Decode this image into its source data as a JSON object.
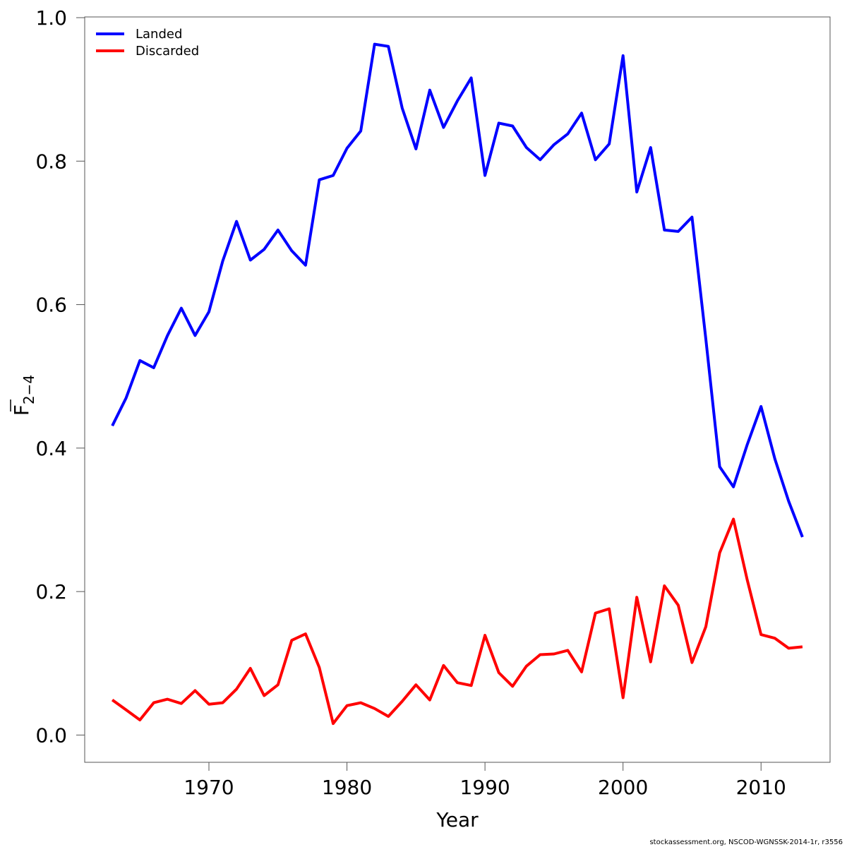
{
  "chart_data": {
    "type": "line",
    "title": "",
    "xlabel": "Year",
    "ylabel": "F",
    "ylabel_subscript": "2−4",
    "xlim": [
      1961,
      2015
    ],
    "ylim": [
      -0.038,
      1.001
    ],
    "xticks": [
      1970,
      1980,
      1990,
      2000,
      2010
    ],
    "xtick_labels": [
      "1970",
      "1980",
      "1990",
      "2000",
      "2010"
    ],
    "yticks": [
      0.0,
      0.2,
      0.4,
      0.6,
      0.8,
      1.0
    ],
    "ytick_labels": [
      "0.0",
      "0.2",
      "0.4",
      "0.6",
      "0.8",
      "1.0"
    ],
    "grid": false,
    "legend_position": "top-left",
    "x": [
      1963,
      1964,
      1965,
      1966,
      1967,
      1968,
      1969,
      1970,
      1971,
      1972,
      1973,
      1974,
      1975,
      1976,
      1977,
      1978,
      1979,
      1980,
      1981,
      1982,
      1983,
      1984,
      1985,
      1986,
      1987,
      1988,
      1989,
      1990,
      1991,
      1992,
      1993,
      1994,
      1995,
      1996,
      1997,
      1998,
      1999,
      2000,
      2001,
      2002,
      2003,
      2004,
      2005,
      2006,
      2007,
      2008,
      2009,
      2010,
      2011,
      2012,
      2013
    ],
    "series": [
      {
        "name": "Landed",
        "color": "#0000ff",
        "values": [
          0.431,
          0.47,
          0.522,
          0.512,
          0.557,
          0.595,
          0.557,
          0.59,
          0.661,
          0.716,
          0.662,
          0.677,
          0.704,
          0.675,
          0.655,
          0.774,
          0.78,
          0.818,
          0.842,
          0.963,
          0.96,
          0.874,
          0.817,
          0.899,
          0.847,
          0.884,
          0.916,
          0.78,
          0.853,
          0.849,
          0.819,
          0.802,
          0.823,
          0.838,
          0.867,
          0.802,
          0.824,
          0.947,
          0.757,
          0.819,
          0.704,
          0.702,
          0.722,
          0.552,
          0.374,
          0.346,
          0.405,
          0.458,
          0.385,
          0.326,
          0.276
        ]
      },
      {
        "name": "Discarded",
        "color": "#ff0000",
        "values": [
          0.049,
          0.035,
          0.021,
          0.045,
          0.05,
          0.044,
          0.062,
          0.043,
          0.045,
          0.064,
          0.093,
          0.055,
          0.07,
          0.132,
          0.141,
          0.094,
          0.016,
          0.041,
          0.045,
          0.037,
          0.026,
          0.047,
          0.07,
          0.049,
          0.097,
          0.073,
          0.069,
          0.139,
          0.087,
          0.068,
          0.096,
          0.112,
          0.113,
          0.118,
          0.088,
          0.17,
          0.176,
          0.052,
          0.192,
          0.102,
          0.208,
          0.181,
          0.101,
          0.151,
          0.254,
          0.301,
          0.216,
          0.14,
          0.135,
          0.121,
          0.123
        ]
      }
    ],
    "footer": "stockassessment.org, NSCOD-WGNSSK-2014-1r, r3556"
  }
}
